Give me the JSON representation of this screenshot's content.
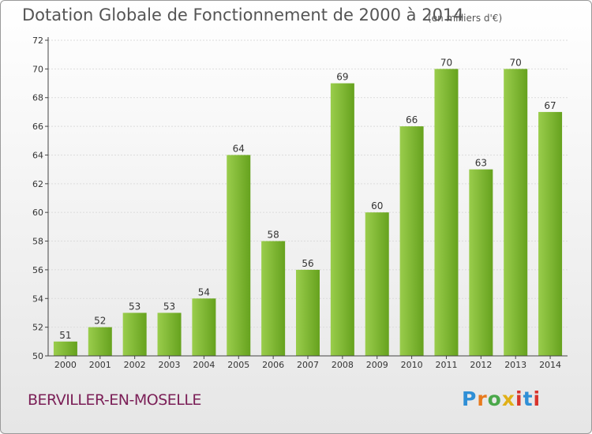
{
  "header": {
    "title": "Dotation Globale de Fonctionnement de 2000 à 2014",
    "unit": "(en milliers d'€)"
  },
  "footer": {
    "city": "BERVILLER-EN-MOSELLE",
    "logo": "Proxiti"
  },
  "colors": {
    "bar_light": "#9acd4c",
    "bar_dark": "#66a21e",
    "axis": "#444444",
    "grid": "#dcdcdc",
    "title": "#555555",
    "city": "#7b1f57"
  },
  "chart_data": {
    "type": "bar",
    "title": "Dotation Globale de Fonctionnement de 2000 à 2014",
    "subtitle": "(en milliers d'€)",
    "xlabel": "",
    "ylabel": "",
    "categories": [
      "2000",
      "2001",
      "2002",
      "2003",
      "2004",
      "2005",
      "2006",
      "2007",
      "2008",
      "2009",
      "2010",
      "2011",
      "2012",
      "2013",
      "2014"
    ],
    "values": [
      51,
      52,
      53,
      53,
      54,
      64,
      58,
      56,
      69,
      60,
      66,
      70,
      63,
      70,
      67
    ],
    "ylim": [
      50,
      72
    ],
    "yticks": [
      50,
      52,
      54,
      56,
      58,
      60,
      62,
      64,
      66,
      68,
      70,
      72
    ],
    "grid": true,
    "legend": "none"
  }
}
